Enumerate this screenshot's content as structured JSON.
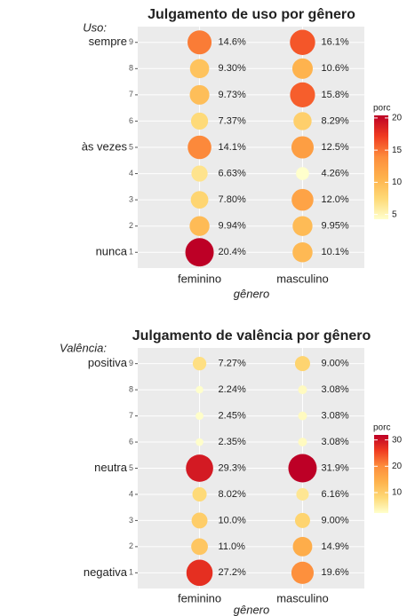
{
  "chart_data": [
    {
      "type": "bubble",
      "title": "Julgamento de uso por gênero",
      "x_label": "gênero",
      "y_note": "Uso:",
      "categories": [
        "feminino",
        "masculino"
      ],
      "yticks": [
        1,
        2,
        3,
        4,
        5,
        6,
        7,
        8,
        9
      ],
      "ylim": [
        0.4,
        9.6
      ],
      "xlim": [
        0.4,
        2.6
      ],
      "y_side_labels": [
        {
          "value": 9,
          "label": "sempre"
        },
        {
          "value": 5,
          "label": "às vezes"
        },
        {
          "value": 1,
          "label": "nunca"
        }
      ],
      "series": [
        {
          "values": [
            20.4,
            9.94,
            7.8,
            6.63,
            14.1,
            7.37,
            9.73,
            9.3,
            14.6
          ],
          "value_labels": [
            "20.4%",
            "9.94%",
            "7.80%",
            "6.63%",
            "14.1%",
            "7.37%",
            "9.73%",
            "9.30%",
            "14.6%"
          ]
        },
        {
          "values": [
            10.1,
            9.95,
            12.0,
            4.26,
            12.5,
            8.29,
            15.8,
            10.6,
            16.1
          ],
          "value_labels": [
            "10.1%",
            "9.95%",
            "12.0%",
            "4.26%",
            "12.5%",
            "8.29%",
            "15.8%",
            "10.6%",
            "16.1%"
          ]
        }
      ],
      "legend_title": "porc",
      "color_lim": [
        4.26,
        20.4
      ],
      "color_ticks": [
        5,
        10,
        15,
        20
      ],
      "color_scale": [
        "#ffffcc",
        "#fed976",
        "#feb24c",
        "#fd8d3c",
        "#f03b20",
        "#bd0026"
      ],
      "grid": true
    },
    {
      "type": "bubble",
      "title": "Julgamento de valência por gênero",
      "x_label": "gênero",
      "y_note": "Valência:",
      "categories": [
        "feminino",
        "masculino"
      ],
      "yticks": [
        1,
        2,
        3,
        4,
        5,
        6,
        7,
        8,
        9
      ],
      "ylim": [
        0.4,
        9.6
      ],
      "xlim": [
        0.4,
        2.6
      ],
      "y_side_labels": [
        {
          "value": 9,
          "label": "positiva"
        },
        {
          "value": 5,
          "label": "neutra"
        },
        {
          "value": 1,
          "label": "negativa"
        }
      ],
      "series": [
        {
          "values": [
            27.2,
            11.0,
            10.0,
            8.02,
            29.3,
            2.35,
            2.45,
            2.24,
            7.27
          ],
          "value_labels": [
            "27.2%",
            "11.0%",
            "10.0%",
            "8.02%",
            "29.3%",
            "2.35%",
            "2.45%",
            "2.24%",
            "7.27%"
          ]
        },
        {
          "values": [
            19.6,
            14.9,
            9.0,
            6.16,
            31.9,
            3.08,
            3.08,
            3.08,
            9.0
          ],
          "value_labels": [
            "19.6%",
            "14.9%",
            "9.00%",
            "6.16%",
            "31.9%",
            "3.08%",
            "3.08%",
            "3.08%",
            "9.00%"
          ]
        }
      ],
      "legend_title": "porc",
      "color_lim": [
        2.24,
        31.9
      ],
      "color_ticks": [
        10,
        20,
        30
      ],
      "color_scale": [
        "#ffffcc",
        "#fed976",
        "#feb24c",
        "#fd8d3c",
        "#f03b20",
        "#bd0026"
      ],
      "grid": true
    }
  ]
}
